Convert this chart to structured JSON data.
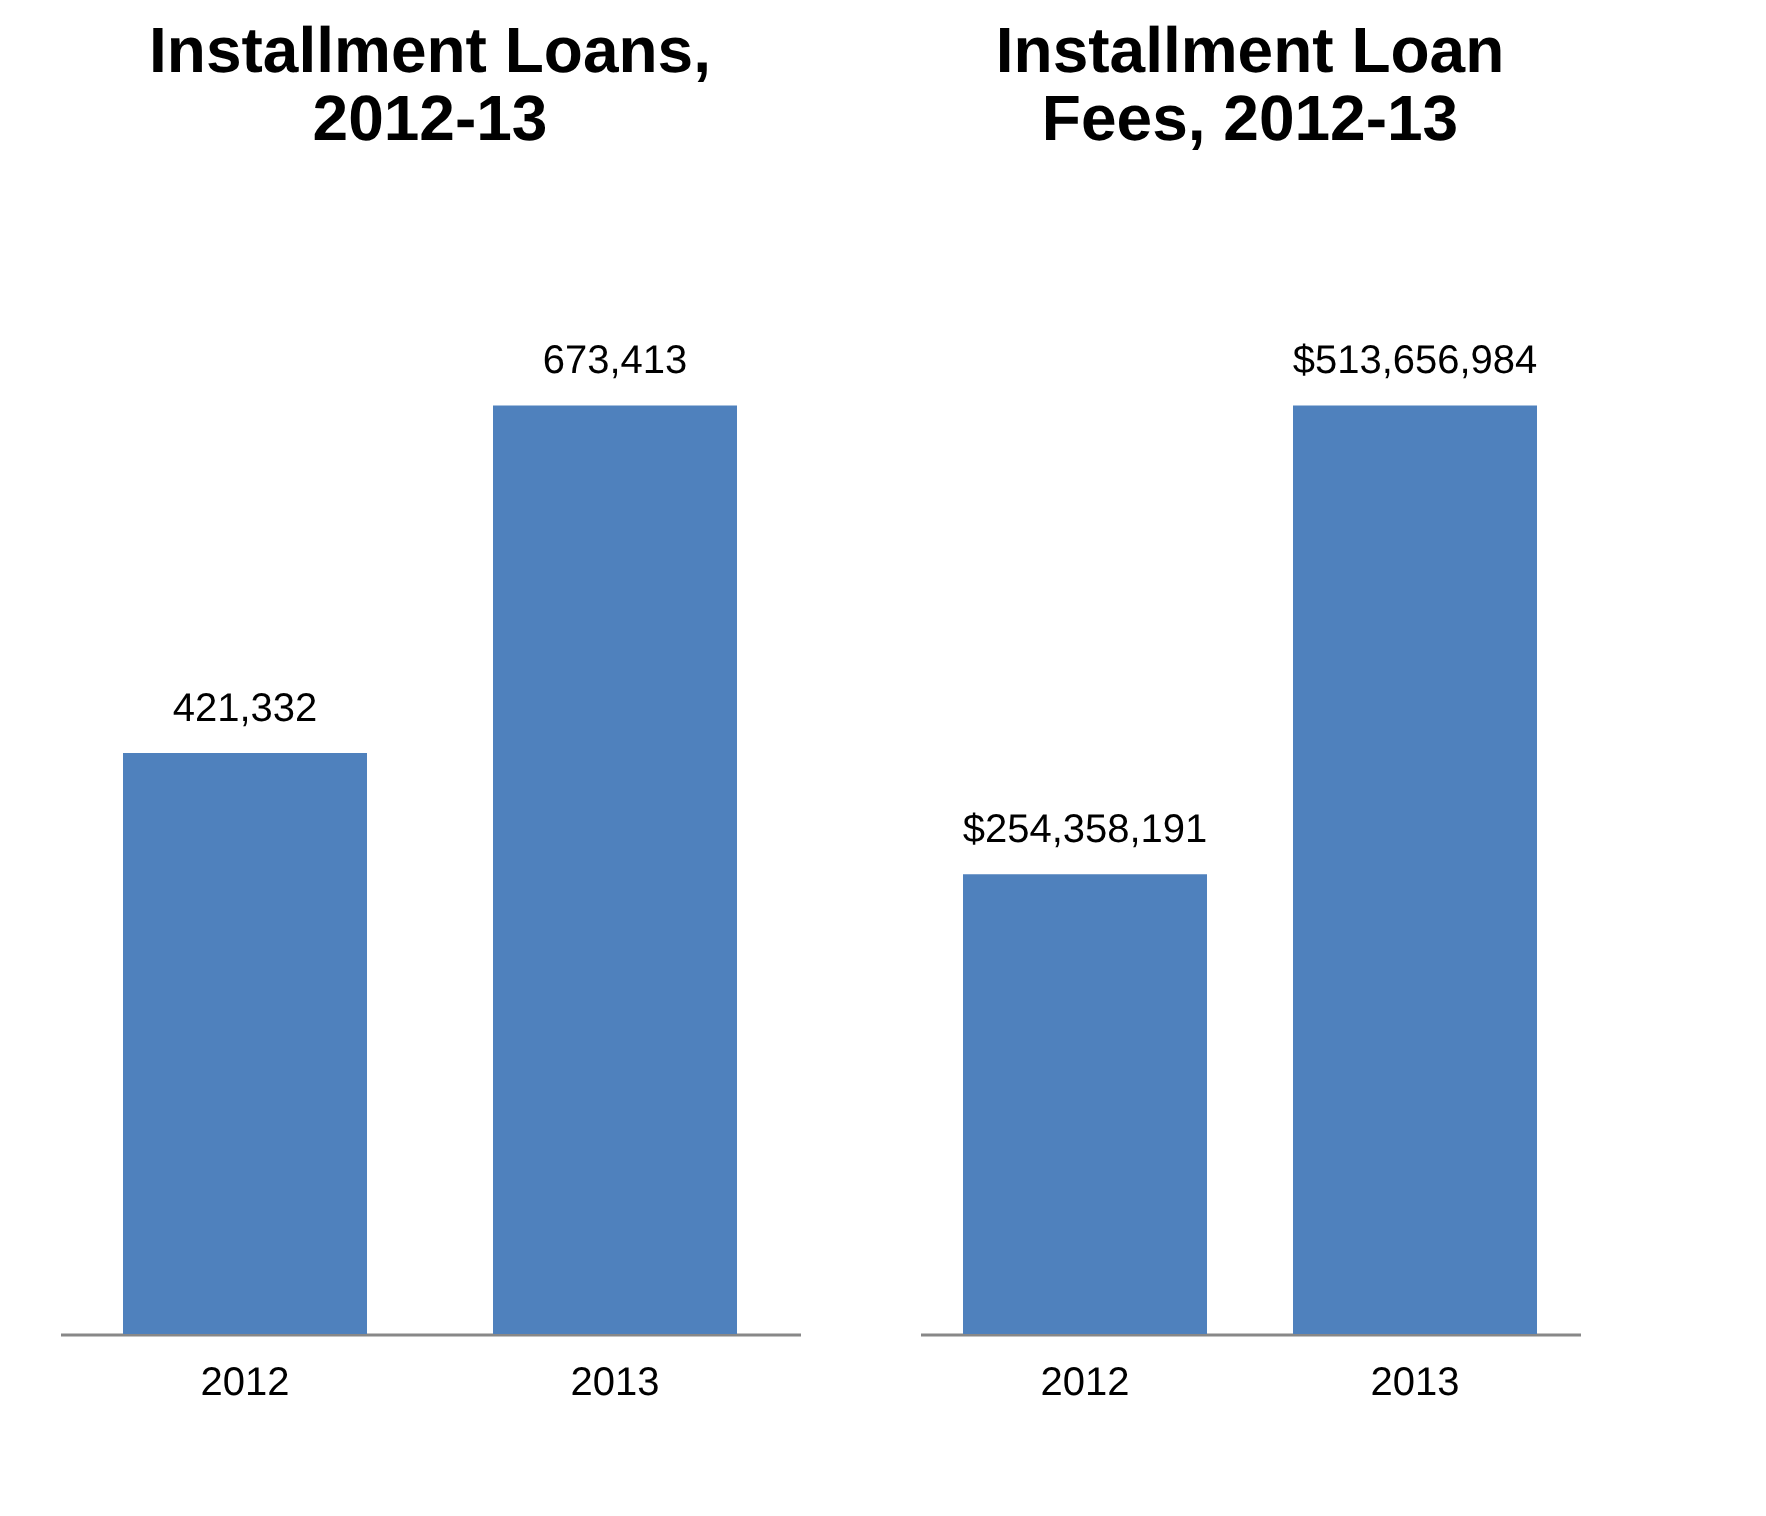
{
  "chart_data": [
    {
      "type": "bar",
      "title": "Installment Loans, 2012-13",
      "categories": [
        "2012",
        "2013"
      ],
      "values": [
        421332,
        673413
      ],
      "value_labels": [
        "421,332",
        "673,413"
      ],
      "color": "#4f81bd"
    },
    {
      "type": "bar",
      "title": "Installment Loan Fees, 2012-13",
      "categories": [
        "2012",
        "2013"
      ],
      "values": [
        254358191,
        513656984
      ],
      "value_labels": [
        "$254,358,191",
        "$513,656,984"
      ],
      "color": "#4f81bd"
    }
  ]
}
